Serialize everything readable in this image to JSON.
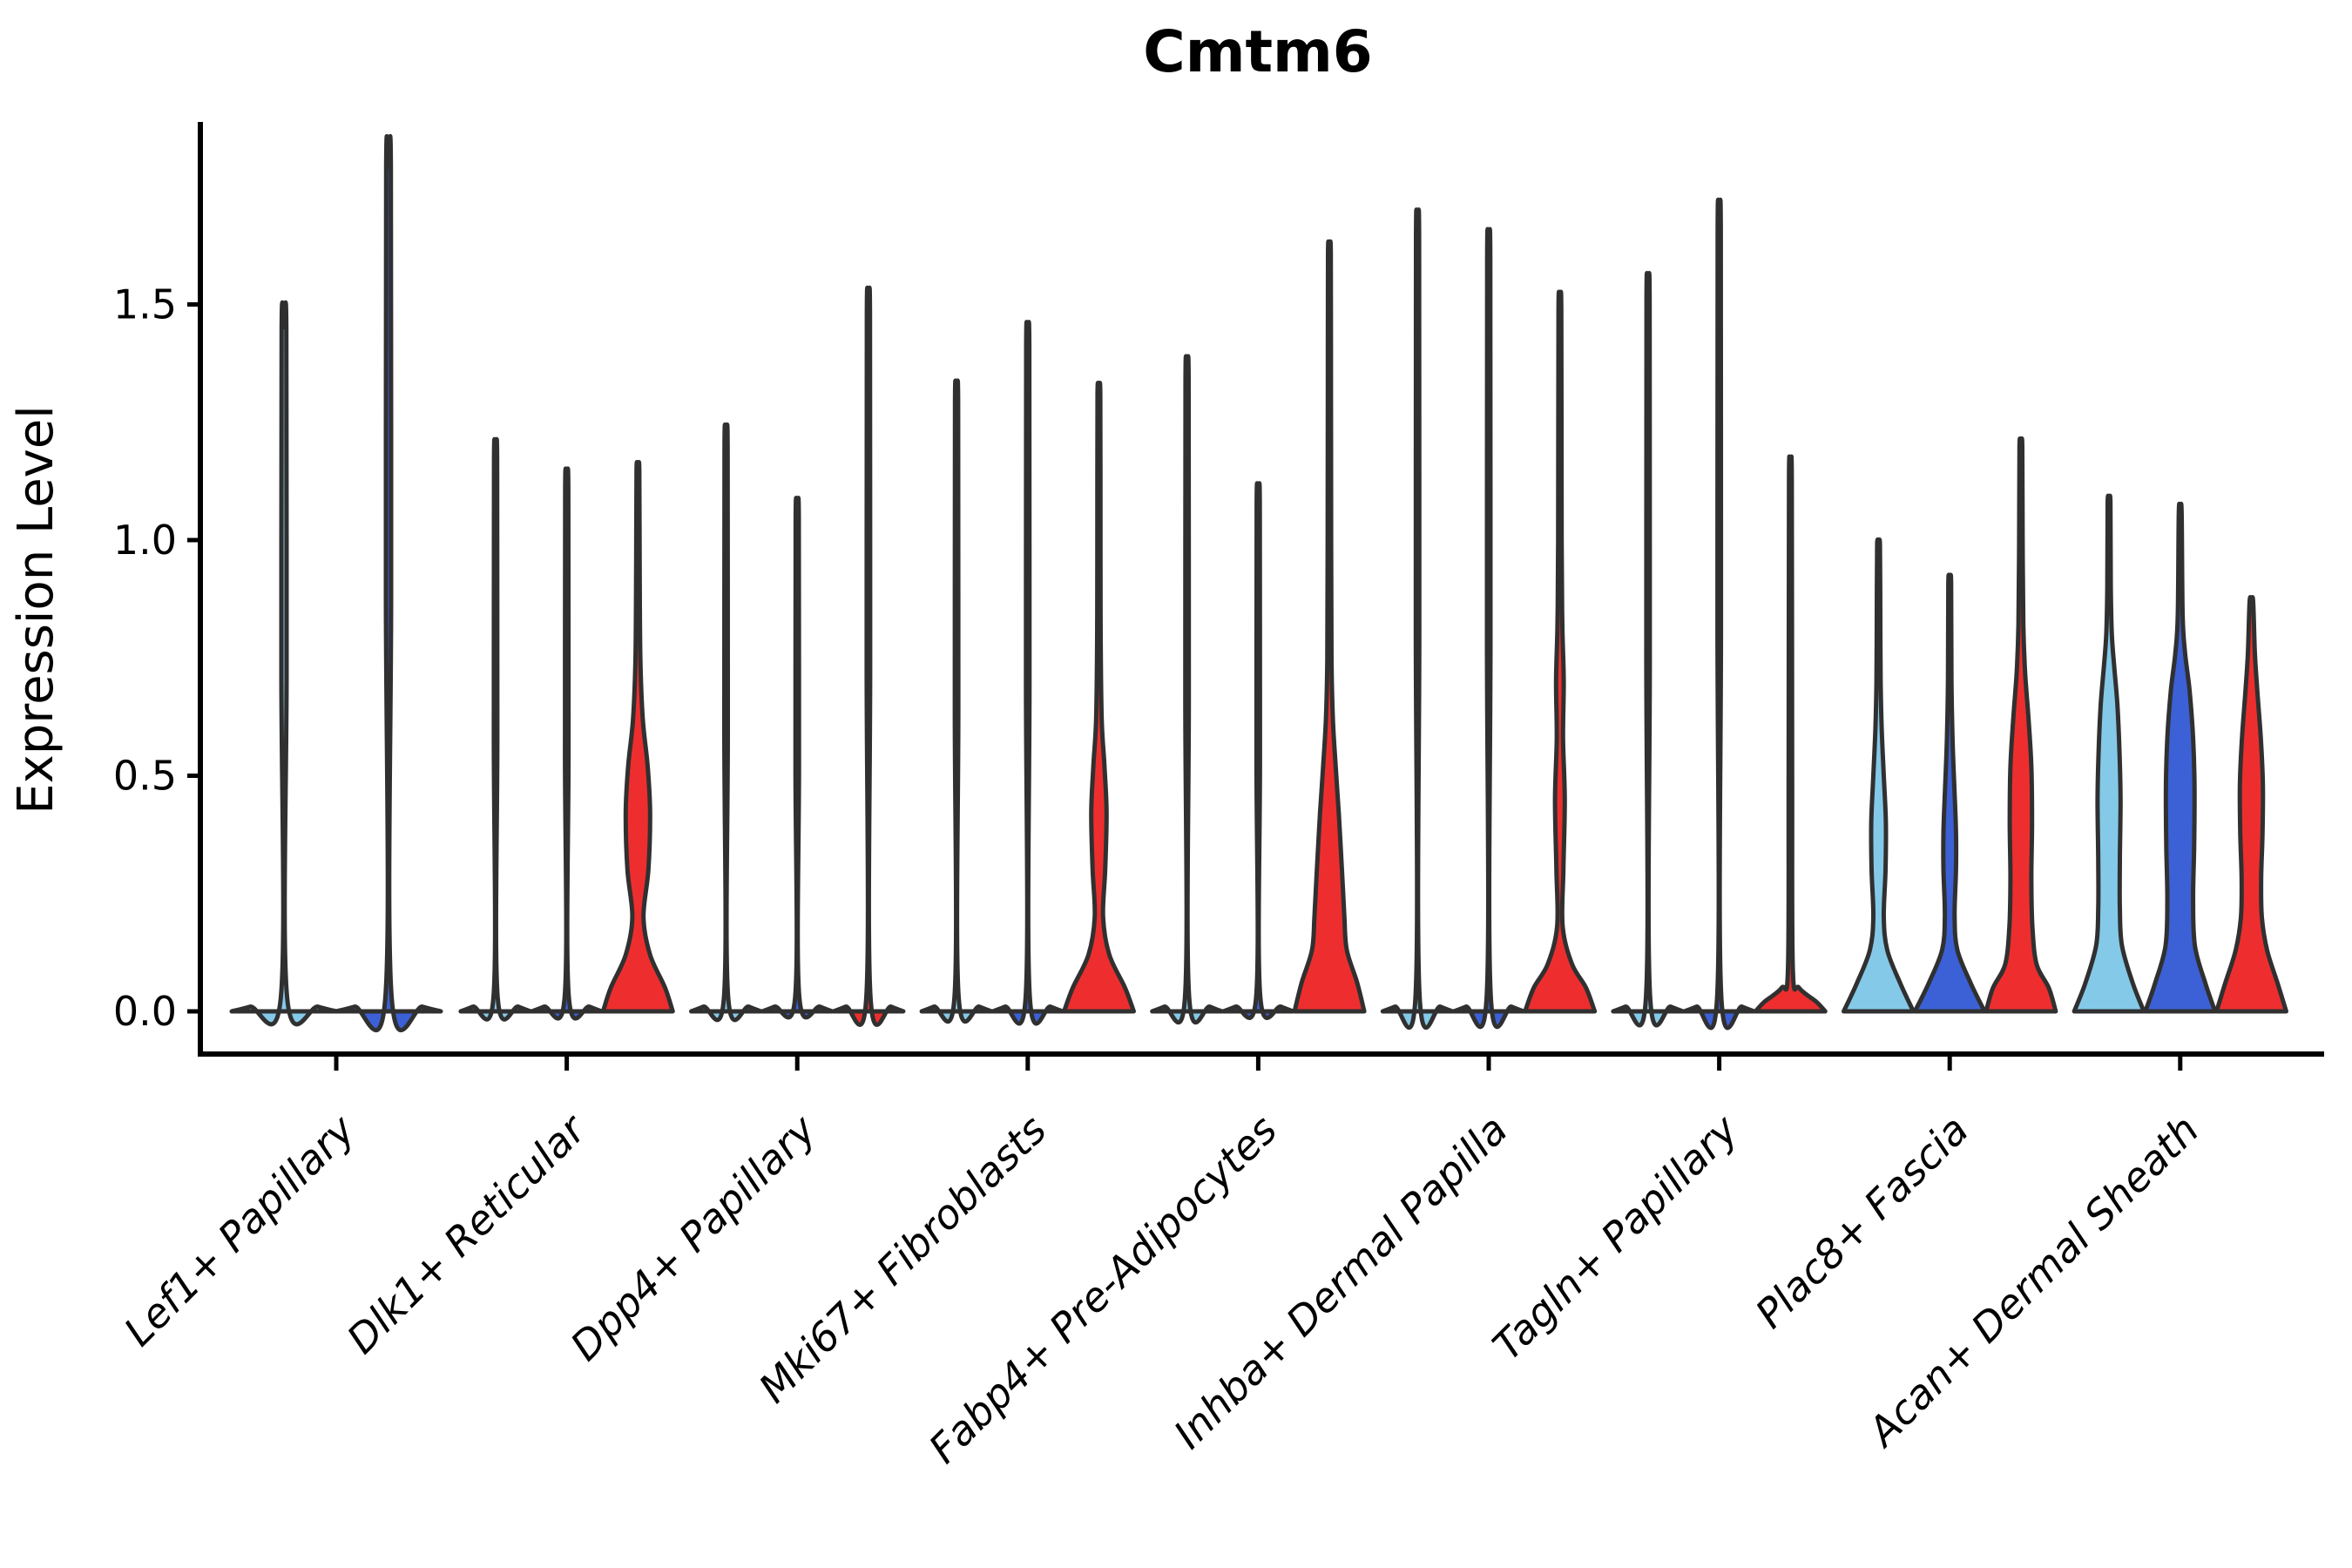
{
  "page": {
    "background": "#ffffff"
  },
  "chart_data": {
    "type": "violin",
    "title": "Cmtm6",
    "xlabel": "",
    "ylabel": "Expression Level",
    "ytick_labels": [
      "0.0",
      "0.5",
      "1.0",
      "1.5"
    ],
    "ytick_values": [
      0.0,
      0.5,
      1.0,
      1.5
    ],
    "ylim": [
      -0.09,
      1.87
    ],
    "grid": false,
    "legend": "none",
    "style": {
      "series_colors": {
        "sample-1": "#85C9E8",
        "sample-2": "#3C61D6",
        "sample-3": "#EE2E2E"
      },
      "outline_color": "#303030",
      "axis_color": "#000000"
    },
    "categories": [
      "Lef1+ Papillary",
      "Dlk1+ Reticular",
      "Dpp4+ Papillary",
      "Mki67+ Fibroblasts",
      "Fabp4+ Pre-Adipocytes",
      "Inhba+ Dermal Papilla",
      "Tagln+ Papillary",
      "Plac8+ Fascia",
      "Acan+ Dermal Sheath"
    ],
    "groups": [
      {
        "category": "Lef1+ Papillary",
        "violins": [
          {
            "series": "sample-1",
            "color": "#85C9E8",
            "max_expression": 1.45,
            "shape": "collapsed",
            "profile": null
          },
          {
            "series": "sample-2",
            "color": "#3C61D6",
            "max_expression": 1.79,
            "shape": "collapsed",
            "profile": null
          }
        ]
      },
      {
        "category": "Dlk1+ Reticular",
        "violins": [
          {
            "series": "sample-1",
            "color": "#85C9E8",
            "max_expression": 1.17,
            "shape": "collapsed",
            "profile": null
          },
          {
            "series": "sample-2",
            "color": "#3C61D6",
            "max_expression": 1.11,
            "shape": "collapsed",
            "profile": null
          },
          {
            "series": "sample-3",
            "color": "#EE2E2E",
            "max_expression": 1.15,
            "shape": "body",
            "profile": [
              [
                0,
                1.0
              ],
              [
                0.05,
                0.78
              ],
              [
                0.12,
                0.35
              ],
              [
                0.2,
                0.16
              ],
              [
                0.3,
                0.3
              ],
              [
                0.42,
                0.35
              ],
              [
                0.52,
                0.28
              ],
              [
                0.62,
                0.14
              ],
              [
                0.75,
                0.07
              ],
              [
                0.95,
                0.05
              ],
              [
                1.15,
                0.04
              ]
            ]
          }
        ]
      },
      {
        "category": "Dpp4+ Papillary",
        "violins": [
          {
            "series": "sample-1",
            "color": "#85C9E8",
            "max_expression": 1.2,
            "shape": "collapsed",
            "profile": null
          },
          {
            "series": "sample-2",
            "color": "#3C61D6",
            "max_expression": 1.05,
            "shape": "collapsed",
            "profile": null
          },
          {
            "series": "sample-3",
            "color": "#EE2E2E",
            "max_expression": 1.48,
            "shape": "collapsed",
            "profile": null
          }
        ]
      },
      {
        "category": "Mki67+ Fibroblasts",
        "violins": [
          {
            "series": "sample-1",
            "color": "#85C9E8",
            "max_expression": 1.29,
            "shape": "collapsed",
            "profile": null
          },
          {
            "series": "sample-2",
            "color": "#3C61D6",
            "max_expression": 1.41,
            "shape": "collapsed",
            "profile": null
          },
          {
            "series": "sample-3",
            "color": "#EE2E2E",
            "max_expression": 1.31,
            "shape": "body",
            "profile": [
              [
                0,
                1.0
              ],
              [
                0.05,
                0.75
              ],
              [
                0.12,
                0.3
              ],
              [
                0.2,
                0.12
              ],
              [
                0.3,
                0.18
              ],
              [
                0.42,
                0.22
              ],
              [
                0.52,
                0.16
              ],
              [
                0.62,
                0.08
              ],
              [
                0.8,
                0.05
              ],
              [
                1.0,
                0.045
              ],
              [
                1.31,
                0.04
              ]
            ]
          }
        ]
      },
      {
        "category": "Fabp4+ Pre-Adipocytes",
        "violins": [
          {
            "series": "sample-1",
            "color": "#85C9E8",
            "max_expression": 1.34,
            "shape": "collapsed",
            "profile": null
          },
          {
            "series": "sample-2",
            "color": "#3C61D6",
            "max_expression": 1.08,
            "shape": "collapsed",
            "profile": null
          },
          {
            "series": "sample-3",
            "color": "#EE2E2E",
            "max_expression": 1.61,
            "shape": "body",
            "profile": [
              [
                0,
                1.0
              ],
              [
                0.06,
                0.8
              ],
              [
                0.13,
                0.5
              ],
              [
                0.2,
                0.43
              ],
              [
                0.3,
                0.36
              ],
              [
                0.42,
                0.27
              ],
              [
                0.52,
                0.18
              ],
              [
                0.62,
                0.1
              ],
              [
                0.75,
                0.06
              ],
              [
                1.0,
                0.05
              ],
              [
                1.3,
                0.045
              ],
              [
                1.61,
                0.04
              ]
            ]
          }
        ]
      },
      {
        "category": "Inhba+ Dermal Papilla",
        "violins": [
          {
            "series": "sample-1",
            "color": "#85C9E8",
            "max_expression": 1.64,
            "shape": "collapsed",
            "profile": null
          },
          {
            "series": "sample-2",
            "color": "#3C61D6",
            "max_expression": 1.6,
            "shape": "collapsed",
            "profile": null
          },
          {
            "series": "sample-3",
            "color": "#EE2E2E",
            "max_expression": 1.49,
            "shape": "body",
            "profile": [
              [
                0,
                1.0
              ],
              [
                0.05,
                0.75
              ],
              [
                0.1,
                0.35
              ],
              [
                0.18,
                0.08
              ],
              [
                0.3,
                0.1
              ],
              [
                0.45,
                0.14
              ],
              [
                0.58,
                0.09
              ],
              [
                0.7,
                0.11
              ],
              [
                0.82,
                0.07
              ],
              [
                1.0,
                0.05
              ],
              [
                1.49,
                0.04
              ]
            ]
          }
        ]
      },
      {
        "category": "Tagln+ Papillary",
        "violins": [
          {
            "series": "sample-1",
            "color": "#85C9E8",
            "max_expression": 1.51,
            "shape": "collapsed",
            "profile": null
          },
          {
            "series": "sample-2",
            "color": "#3C61D6",
            "max_expression": 1.66,
            "shape": "collapsed",
            "profile": null
          },
          {
            "series": "sample-3",
            "color": "#EE2E2E",
            "max_expression": 1.13,
            "shape": "body",
            "profile": [
              [
                0,
                1.0
              ],
              [
                0.02,
                0.75
              ],
              [
                0.05,
                0.25
              ],
              [
                0.09,
                0.07
              ],
              [
                0.5,
                0.05
              ],
              [
                1.13,
                0.04
              ]
            ]
          }
        ]
      },
      {
        "category": "Plac8+ Fascia",
        "violins": [
          {
            "series": "sample-1",
            "color": "#85C9E8",
            "max_expression": 0.99,
            "shape": "body",
            "profile": [
              [
                0,
                1.0
              ],
              [
                0.06,
                0.62
              ],
              [
                0.13,
                0.25
              ],
              [
                0.2,
                0.15
              ],
              [
                0.3,
                0.2
              ],
              [
                0.4,
                0.21
              ],
              [
                0.5,
                0.15
              ],
              [
                0.6,
                0.09
              ],
              [
                0.7,
                0.06
              ],
              [
                0.85,
                0.05
              ],
              [
                0.99,
                0.04
              ]
            ]
          },
          {
            "series": "sample-2",
            "color": "#3C61D6",
            "max_expression": 0.91,
            "shape": "body",
            "profile": [
              [
                0,
                1.0
              ],
              [
                0.06,
                0.6
              ],
              [
                0.13,
                0.22
              ],
              [
                0.2,
                0.14
              ],
              [
                0.3,
                0.18
              ],
              [
                0.38,
                0.18
              ],
              [
                0.48,
                0.13
              ],
              [
                0.58,
                0.08
              ],
              [
                0.7,
                0.05
              ],
              [
                0.91,
                0.04
              ]
            ]
          },
          {
            "series": "sample-3",
            "color": "#EE2E2E",
            "max_expression": 1.2,
            "shape": "body",
            "profile": [
              [
                0,
                1.0
              ],
              [
                0.05,
                0.8
              ],
              [
                0.1,
                0.45
              ],
              [
                0.18,
                0.33
              ],
              [
                0.28,
                0.3
              ],
              [
                0.4,
                0.32
              ],
              [
                0.52,
                0.3
              ],
              [
                0.62,
                0.22
              ],
              [
                0.72,
                0.12
              ],
              [
                0.82,
                0.07
              ],
              [
                1.0,
                0.05
              ],
              [
                1.2,
                0.04
              ]
            ]
          }
        ]
      },
      {
        "category": "Acan+ Dermal Sheath",
        "violins": [
          {
            "series": "sample-1",
            "color": "#85C9E8",
            "max_expression": 1.08,
            "shape": "body",
            "profile": [
              [
                0,
                1.0
              ],
              [
                0.06,
                0.68
              ],
              [
                0.14,
                0.37
              ],
              [
                0.22,
                0.31
              ],
              [
                0.32,
                0.31
              ],
              [
                0.45,
                0.33
              ],
              [
                0.55,
                0.3
              ],
              [
                0.65,
                0.24
              ],
              [
                0.73,
                0.15
              ],
              [
                0.8,
                0.08
              ],
              [
                0.9,
                0.05
              ],
              [
                1.08,
                0.04
              ]
            ]
          },
          {
            "series": "sample-2",
            "color": "#3C61D6",
            "max_expression": 1.06,
            "shape": "body",
            "profile": [
              [
                0,
                1.0
              ],
              [
                0.06,
                0.72
              ],
              [
                0.14,
                0.42
              ],
              [
                0.24,
                0.37
              ],
              [
                0.35,
                0.4
              ],
              [
                0.48,
                0.41
              ],
              [
                0.58,
                0.37
              ],
              [
                0.68,
                0.27
              ],
              [
                0.76,
                0.14
              ],
              [
                0.84,
                0.07
              ],
              [
                1.06,
                0.04
              ]
            ]
          },
          {
            "series": "sample-3",
            "color": "#EE2E2E",
            "max_expression": 0.87,
            "shape": "body",
            "profile": [
              [
                0,
                1.0
              ],
              [
                0.06,
                0.75
              ],
              [
                0.13,
                0.45
              ],
              [
                0.2,
                0.3
              ],
              [
                0.28,
                0.28
              ],
              [
                0.38,
                0.32
              ],
              [
                0.48,
                0.33
              ],
              [
                0.58,
                0.27
              ],
              [
                0.68,
                0.17
              ],
              [
                0.76,
                0.1
              ],
              [
                0.87,
                0.05
              ]
            ]
          }
        ]
      }
    ]
  }
}
